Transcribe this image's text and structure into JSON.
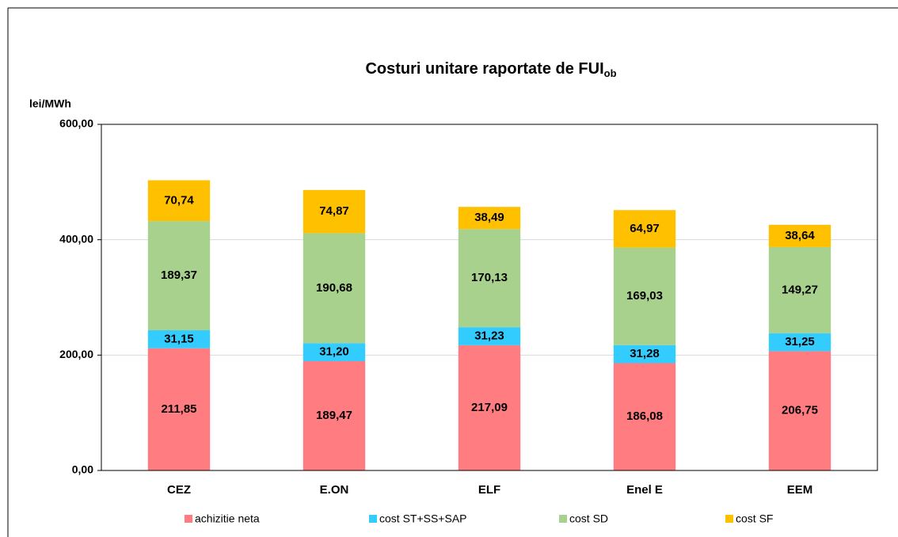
{
  "chart_data": {
    "type": "stacked_bar",
    "title": "Costuri unitare raportate de FUI",
    "title_subscript": "ob",
    "y_label": "lei/MWh",
    "categories": [
      "CEZ",
      "E.ON",
      "ELF",
      "Enel E",
      "EEM"
    ],
    "series": [
      {
        "name": "achizitie neta",
        "color": "#ff7c80",
        "values": [
          211.85,
          189.47,
          217.09,
          186.08,
          206.75
        ],
        "value_labels": [
          "211,85",
          "189,47",
          "217,09",
          "186,08",
          "206,75"
        ]
      },
      {
        "name": "cost ST+SS+SAP",
        "color": "#33ccff",
        "values": [
          31.15,
          31.2,
          31.23,
          31.28,
          31.25
        ],
        "value_labels": [
          "31,15",
          "31,20",
          "31,23",
          "31,28",
          "31,25"
        ]
      },
      {
        "name": "cost SD",
        "color": "#a9d18e",
        "values": [
          189.37,
          190.68,
          170.13,
          169.03,
          149.27
        ],
        "value_labels": [
          "189,37",
          "190,68",
          "170,13",
          "169,03",
          "149,27"
        ]
      },
      {
        "name": "cost SF",
        "color": "#ffc000",
        "values": [
          70.74,
          74.87,
          38.49,
          64.97,
          38.64
        ],
        "value_labels": [
          "70,74",
          "74,87",
          "38,49",
          "64,97",
          "38,64"
        ]
      }
    ],
    "ylim": [
      0,
      600
    ],
    "yticks": [
      {
        "value": 0,
        "label": "0,00"
      },
      {
        "value": 200,
        "label": "200,00"
      },
      {
        "value": 400,
        "label": "400,00"
      },
      {
        "value": 600,
        "label": "600,00"
      }
    ],
    "grid": true,
    "legend": "bottom"
  }
}
